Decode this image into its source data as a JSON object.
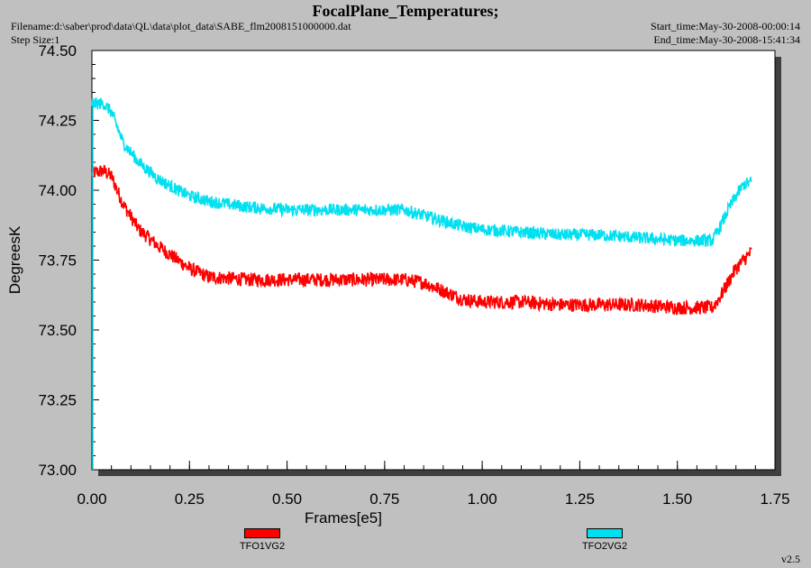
{
  "header": {
    "title": "FocalPlane_Temperatures;",
    "filename": "Filename:d:\\saber\\prod\\data\\QL\\data\\plot_data\\SABE_flm2008151000000.dat",
    "step_size": "Step Size:1",
    "start_time": "Start_time:May-30-2008-00:00:14",
    "end_time": "End_time:May-30-2008-15:41:34"
  },
  "version": "v2.5",
  "colors": {
    "TFO1VG2": "#ff0000",
    "TFO2VG2": "#00e0f0",
    "plot_bg": "#ffffff",
    "page_bg": "#c0c0c0"
  },
  "chart_data": {
    "type": "line",
    "title": "FocalPlane_Temperatures;",
    "xlabel": "Frames[e5]",
    "ylabel": "DegreesK",
    "xlim": [
      0.0,
      1.75
    ],
    "ylim": [
      73.0,
      74.5
    ],
    "x_ticks": [
      "0.00",
      "0.25",
      "0.50",
      "0.75",
      "1.00",
      "1.25",
      "1.50",
      "1.75"
    ],
    "y_ticks": [
      "73.00",
      "73.25",
      "73.50",
      "73.75",
      "74.00",
      "74.25",
      "74.50"
    ],
    "grid": false,
    "legend": "bottom",
    "series": [
      {
        "name": "TFO1VG2",
        "color": "#ff0000",
        "noise": 0.025,
        "x": [
          0.0,
          0.03,
          0.05,
          0.08,
          0.12,
          0.17,
          0.22,
          0.25,
          0.3,
          0.4,
          0.5,
          0.6,
          0.7,
          0.8,
          0.85,
          0.9,
          0.95,
          1.0,
          1.1,
          1.2,
          1.3,
          1.4,
          1.5,
          1.55,
          1.59,
          1.61,
          1.63,
          1.65,
          1.67,
          1.69
        ],
        "y": [
          74.06,
          74.07,
          74.05,
          73.95,
          73.86,
          73.8,
          73.75,
          73.72,
          73.69,
          73.68,
          73.68,
          73.68,
          73.68,
          73.68,
          73.67,
          73.64,
          73.61,
          73.6,
          73.6,
          73.59,
          73.59,
          73.59,
          73.58,
          73.58,
          73.58,
          73.62,
          73.67,
          73.72,
          73.75,
          73.78
        ]
      },
      {
        "name": "TFO2VG2",
        "color": "#00e0f0",
        "noise": 0.022,
        "x": [
          0.0,
          0.03,
          0.05,
          0.08,
          0.12,
          0.17,
          0.22,
          0.25,
          0.3,
          0.4,
          0.5,
          0.6,
          0.7,
          0.8,
          0.85,
          0.9,
          0.95,
          1.0,
          1.1,
          1.2,
          1.3,
          1.4,
          1.5,
          1.55,
          1.59,
          1.61,
          1.63,
          1.65,
          1.67,
          1.69
        ],
        "y": [
          74.31,
          74.31,
          74.28,
          74.17,
          74.1,
          74.04,
          74.0,
          73.98,
          73.96,
          73.94,
          73.93,
          73.93,
          73.93,
          73.93,
          73.91,
          73.89,
          73.87,
          73.86,
          73.85,
          73.84,
          73.84,
          73.83,
          73.82,
          73.82,
          73.82,
          73.87,
          73.93,
          73.98,
          74.02,
          74.03
        ]
      }
    ]
  }
}
